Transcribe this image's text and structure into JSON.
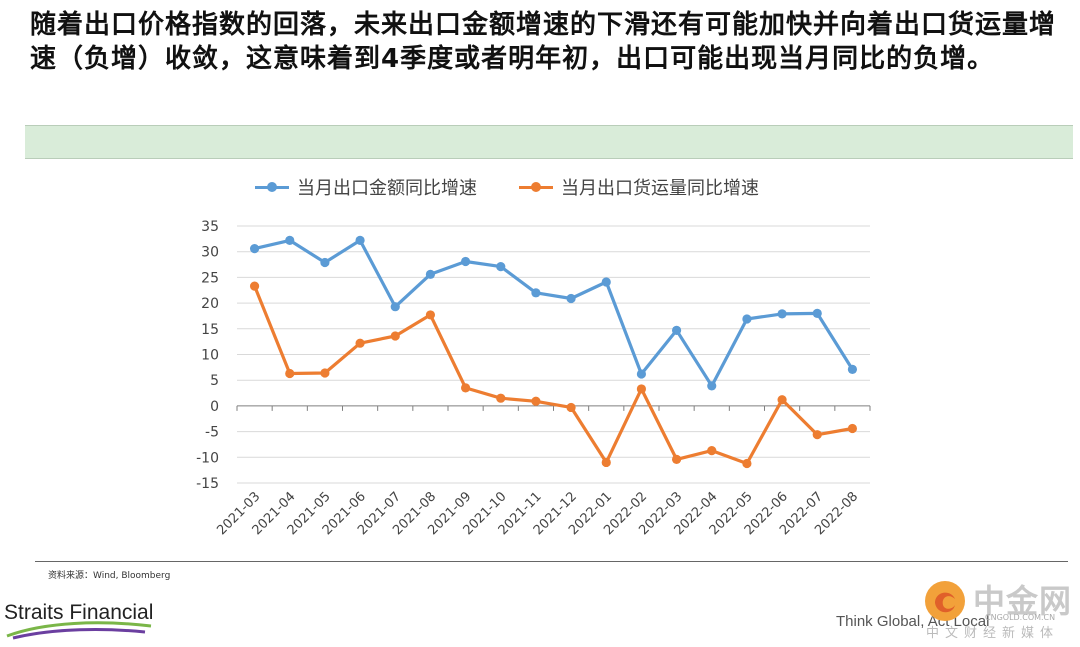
{
  "headline": "随着出口价格指数的回落，未来出口金额增速的下滑还有可能加快并向着出口货运量增速（负增）收敛，这意味着到4季度或者明年初，出口可能出现当月同比的负增。",
  "chart_data": {
    "type": "line",
    "categories": [
      "2021-03",
      "2021-04",
      "2021-05",
      "2021-06",
      "2021-07",
      "2021-08",
      "2021-09",
      "2021-10",
      "2021-11",
      "2021-12",
      "2022-01",
      "2022-02",
      "2022-03",
      "2022-04",
      "2022-05",
      "2022-06",
      "2022-07",
      "2022-08"
    ],
    "series": [
      {
        "name": "当月出口金额同比增速",
        "color": "#5b9bd5",
        "values": [
          30.6,
          32.2,
          27.9,
          32.2,
          19.3,
          25.6,
          28.1,
          27.1,
          22.0,
          20.9,
          24.1,
          6.2,
          14.7,
          3.9,
          16.9,
          17.9,
          18.0,
          7.1
        ]
      },
      {
        "name": "当月出口货运量同比增速",
        "color": "#ed7d31",
        "values": [
          23.3,
          6.3,
          6.4,
          12.2,
          13.6,
          17.7,
          3.5,
          1.5,
          0.9,
          -0.3,
          -11.0,
          3.3,
          -10.4,
          -8.7,
          -11.2,
          1.2,
          -5.6,
          -4.4
        ]
      }
    ],
    "ylim": [
      -15,
      35
    ],
    "yticks": [
      35,
      30,
      25,
      20,
      15,
      10,
      5,
      0,
      -5,
      -10,
      -15
    ],
    "grid": true,
    "legend_position": "top"
  },
  "footer": {
    "source": "资料来源：Wind, Bloomberg",
    "brand": "Straits Financial",
    "tagline": "Think Global, Act Local",
    "watermark_name": "中金网",
    "watermark_url": "CNGOLD.COM.CN",
    "watermark_sub": "中文财经新媒体"
  }
}
